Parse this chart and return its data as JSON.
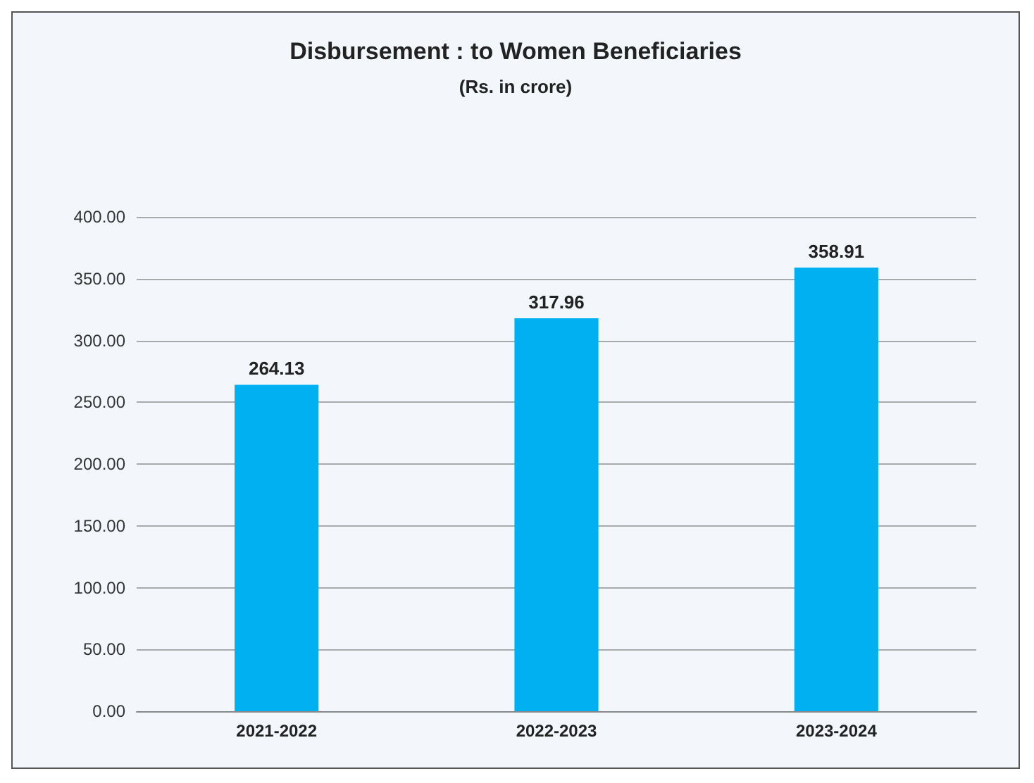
{
  "chart_data": {
    "type": "bar",
    "title": "Disbursement : to Women Beneficiaries",
    "subtitle": "(Rs. in crore)",
    "categories": [
      "2021-2022",
      "2022-2023",
      "2023-2024"
    ],
    "values": [
      264.13,
      317.96,
      358.91
    ],
    "color": "#00b0f0",
    "ylim": [
      0,
      400
    ],
    "yticks": [
      {
        "value": 0,
        "label": "0.00"
      },
      {
        "value": 50,
        "label": "50.00"
      },
      {
        "value": 100,
        "label": "100.00"
      },
      {
        "value": 150,
        "label": "150.00"
      },
      {
        "value": 200,
        "label": "200.00"
      },
      {
        "value": 250,
        "label": "250.00"
      },
      {
        "value": 300,
        "label": "300.00"
      },
      {
        "value": 350,
        "label": "350.00"
      },
      {
        "value": 400,
        "label": "400.00"
      }
    ],
    "grid": "y",
    "data_labels": true
  }
}
